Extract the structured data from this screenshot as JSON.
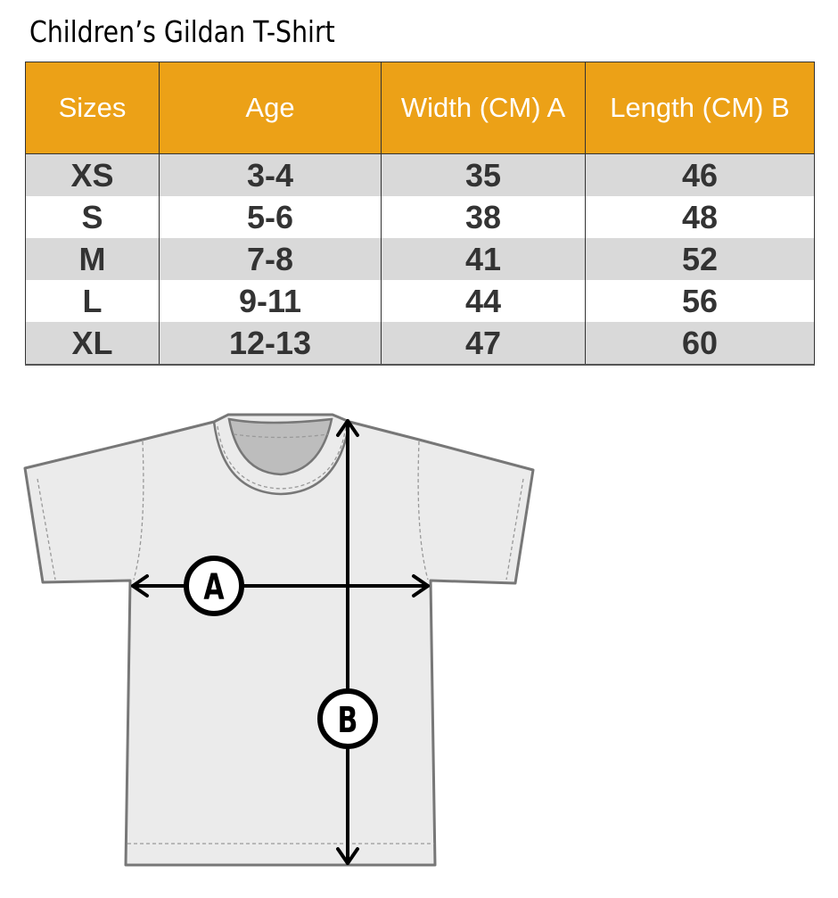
{
  "title": "Children’s Gildan T-Shirt",
  "table": {
    "headers": [
      "Sizes",
      "Age",
      "Width (CM) A",
      "Length  (CM) B"
    ],
    "rows": [
      [
        "XS",
        "3-4",
        "35",
        "46"
      ],
      [
        "S",
        "5-6",
        "38",
        "48"
      ],
      [
        "M",
        "7-8",
        "41",
        "52"
      ],
      [
        "L",
        "9-11",
        "44",
        "56"
      ],
      [
        "XL",
        "12-13",
        "47",
        "60"
      ]
    ]
  },
  "diagram": {
    "label_a": "A",
    "label_b": "B"
  },
  "colors": {
    "header": "#eca117",
    "row_alt": "#d9d9d9",
    "shirt": "#ebebeb"
  }
}
